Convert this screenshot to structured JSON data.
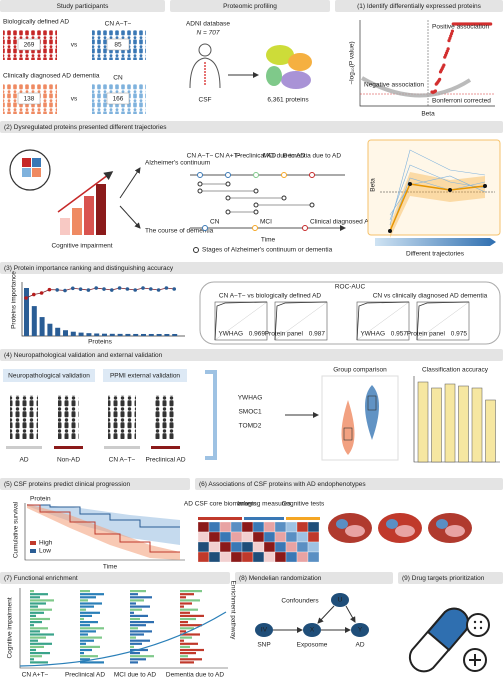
{
  "study": {
    "title": "Study participants",
    "pairs": [
      {
        "case": "Biologically defined AD",
        "case_n": 269,
        "vs": "vs",
        "control": "CN A−T−",
        "control_n": 85
      },
      {
        "case": "Clinically diagnosed AD dementia",
        "case_n": 138,
        "vs": "vs",
        "control": "CN",
        "control_n": 166
      }
    ]
  },
  "profiling": {
    "title": "Proteomic profiling",
    "database": "ADNI database",
    "n": "N = 707",
    "sample": "CSF",
    "proteins": "6,361 proteins"
  },
  "p1": {
    "title": "(1) Identify differentially expressed proteins",
    "positive": "Positive association",
    "y_label": "−log₁₀(P value)",
    "negative": "Negative association",
    "threshold": "Bonferroni corrected",
    "x_label": "Beta"
  },
  "p2": {
    "title": "(2) Dysregulated proteins presented different trajectories",
    "impairment": "Cognitive impairment",
    "continuum": "Alzheimer's continuum",
    "dementia": "The course of dementia",
    "stages": [
      "CN A−T−",
      "CN A+T−",
      "Preclinical AD",
      "MCI due to AD",
      "Dementia due to AD"
    ],
    "dementia_stages": [
      "CN",
      "MCI",
      "Clinical diagnosed AD dementia"
    ],
    "time": "Time",
    "legend": "Stages of Alzheimer's continuum or dementia",
    "beta": "Beta",
    "trajectories": "Different trajectories"
  },
  "p3": {
    "title": "(3) Protein importance ranking and distinguishing accuracy",
    "y_label": "Proteins importance",
    "x_label": "Proteins",
    "roc": "ROC-AUC",
    "comparisons": [
      {
        "label": "CN A−T− vs biologically defined AD",
        "curves": [
          {
            "name": "YWHAG",
            "auc": 0.969
          },
          {
            "name": "Protein panel",
            "auc": 0.987
          }
        ]
      },
      {
        "label": "CN vs clinically diagnosed AD dementia",
        "curves": [
          {
            "name": "YWHAG",
            "auc": 0.957
          },
          {
            "name": "Protein panel",
            "auc": 0.975
          }
        ]
      }
    ]
  },
  "p4": {
    "title": "(4) Neuropathological validation and external validation",
    "neuro": "Neuropathological validation",
    "ppmi": "PPMI external validation",
    "groups": [
      "AD",
      "Non-AD",
      "CN A−T−",
      "Preclinical AD"
    ],
    "proteins": [
      "YWHAG",
      "SMOC1",
      "TOMD2"
    ],
    "group_comparison": "Group comparison",
    "classification": "Classification accuracy"
  },
  "p5": {
    "title": "(5) CSF proteins predict clinical progression",
    "protein": "Protein",
    "y_label": "Cumulative survival",
    "legend": [
      "High",
      "Low"
    ],
    "x_label": "Time"
  },
  "p6": {
    "title": "(6) Associations of CSF proteins with AD endophenotypes",
    "groups": [
      "AD CSF core biomarkers",
      "Imaging measures",
      "Cognitive tests"
    ]
  },
  "p7": {
    "title": "(7) Functional enrichment",
    "y_label": "Cognitive impairment",
    "y2_label": "Enrichment pathway",
    "stages": [
      "CN A+T−",
      "Preclinical AD",
      "MCI due to AD",
      "Dementia due to AD"
    ]
  },
  "p8": {
    "title": "(8) Mendelian randomization",
    "confounders": "Confounders",
    "nodes": [
      "U",
      "IV",
      "X",
      "Y"
    ],
    "node_labels": [
      "SNP",
      "Exposome",
      "AD"
    ]
  },
  "p9": {
    "title": "(9) Drug targets prioritization"
  }
}
